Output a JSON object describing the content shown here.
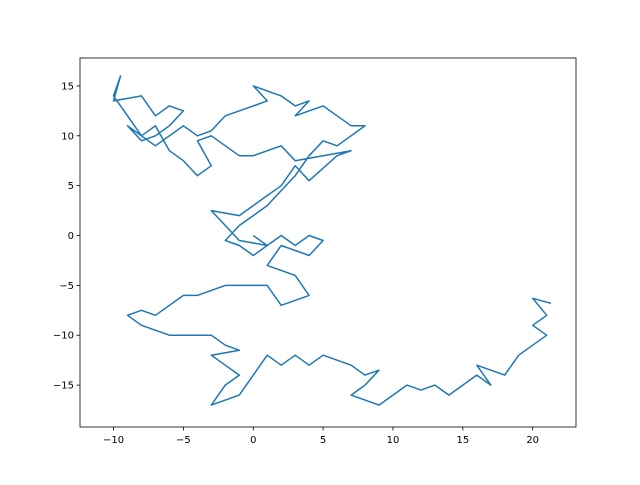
{
  "chart_data": {
    "type": "line",
    "title": "",
    "xlabel": "",
    "ylabel": "",
    "xlim": [
      -12.4,
      23.1
    ],
    "ylim": [
      -19.2,
      17.8
    ],
    "xticks": [
      -10,
      -5,
      0,
      5,
      10,
      15,
      20
    ],
    "yticks": [
      -15,
      -10,
      -5,
      0,
      5,
      10,
      15
    ],
    "grid": false,
    "line_color": "#1f77b4",
    "series": [
      {
        "x": [
          0,
          1,
          -1,
          -2,
          -3,
          -1,
          0,
          1,
          2,
          3,
          4,
          6,
          7,
          5,
          3,
          2,
          0,
          -1,
          -2,
          -3,
          -4,
          -3,
          -4,
          -5,
          -6,
          -7,
          -8,
          -9,
          -10,
          -9.5,
          -10,
          -8,
          -7,
          -6,
          -5,
          -6,
          -7,
          -8,
          -9,
          -7,
          -5,
          -4,
          -3,
          -2,
          0,
          1,
          0,
          2,
          3,
          4,
          3,
          5,
          6,
          7,
          8,
          7,
          6,
          5,
          4,
          3,
          2,
          1,
          0,
          -1,
          -2,
          -1,
          0,
          1,
          2,
          3,
          4,
          5,
          4,
          2,
          1,
          3,
          4,
          2,
          1,
          -2,
          -4,
          -5,
          -7,
          -8,
          -9,
          -8,
          -6,
          -3,
          -2,
          -1,
          -3,
          -2,
          -1,
          -2,
          -3,
          -1,
          0,
          1,
          2,
          3,
          4,
          5,
          6,
          7,
          8,
          9,
          8,
          7,
          9,
          10,
          11,
          12,
          13,
          14,
          15,
          16,
          17,
          16,
          18,
          19,
          20,
          21,
          20,
          21,
          20,
          21.3
        ],
        "y": [
          0,
          -1,
          -0.5,
          1,
          2.5,
          2,
          3,
          4,
          5,
          7,
          5.5,
          8,
          8.5,
          8,
          7.5,
          9,
          8,
          8,
          9,
          10,
          9.5,
          7,
          6,
          7.5,
          8.5,
          11,
          10,
          12,
          14,
          16,
          13.5,
          14,
          12,
          13,
          12.5,
          11,
          10,
          9.5,
          11,
          9,
          11,
          10,
          10.5,
          12,
          13,
          13.5,
          15,
          14,
          13,
          13.5,
          12,
          13,
          12,
          11,
          11,
          10,
          9,
          9.5,
          8,
          6,
          4.5,
          3,
          2,
          1,
          -0.5,
          -1,
          -2,
          -1,
          0,
          -1,
          0,
          -0.5,
          -2,
          -1,
          -3,
          -4,
          -6,
          -7,
          -5,
          -5,
          -6,
          -6,
          -8,
          -7.5,
          -8,
          -9,
          -10,
          -10,
          -11,
          -11.5,
          -12,
          -13,
          -14,
          -15,
          -17,
          -16,
          -14,
          -12,
          -13,
          -12,
          -13,
          -12,
          -12.5,
          -13,
          -14,
          -13.5,
          -15,
          -16,
          -17,
          -16,
          -15,
          -15.5,
          -15,
          -16,
          -15,
          -14,
          -15,
          -13,
          -14,
          -12,
          -11,
          -10,
          -9,
          -8,
          -6.3,
          -6.8
        ]
      }
    ]
  }
}
